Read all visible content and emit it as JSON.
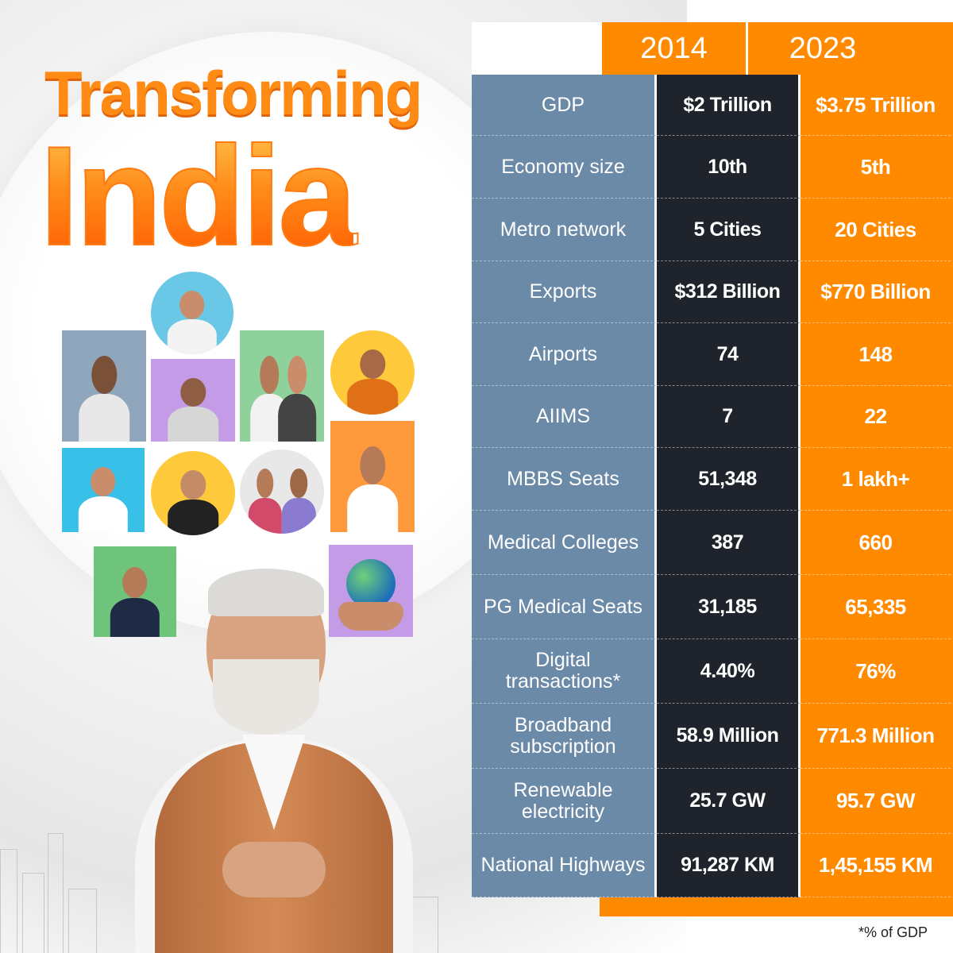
{
  "title": {
    "line1": "Transforming",
    "line2": "India"
  },
  "years": [
    "2014",
    "2023"
  ],
  "rows": [
    {
      "label": "GDP",
      "v2014": "$2 Trillion",
      "v2023": "$3.75 Trillion"
    },
    {
      "label": "Economy size",
      "v2014": "10th",
      "v2023": "5th"
    },
    {
      "label": "Metro network",
      "v2014": "5 Cities",
      "v2023": "20 Cities"
    },
    {
      "label": "Exports",
      "v2014": "$312 Billion",
      "v2023": "$770 Billion"
    },
    {
      "label": "Airports",
      "v2014": "74",
      "v2023": "148"
    },
    {
      "label": "AIIMS",
      "v2014": "7",
      "v2023": "22"
    },
    {
      "label": "MBBS Seats",
      "v2014": "51,348",
      "v2023": "1 lakh+"
    },
    {
      "label": "Medical Colleges",
      "v2014": "387",
      "v2023": "660"
    },
    {
      "label": "PG Medical Seats",
      "v2014": "31,185",
      "v2023": "65,335"
    },
    {
      "label": "Digital transactions*",
      "v2014": "4.40%",
      "v2023": "76%"
    },
    {
      "label": "Broadband subscription",
      "v2014": "58.9 Million",
      "v2023": "771.3 Million"
    },
    {
      "label": "Renewable electricity",
      "v2014": "25.7 GW",
      "v2023": "95.7 GW"
    },
    {
      "label": "National Highways",
      "v2014": "91,287 KM",
      "v2023": "1,45,155 KM"
    }
  ],
  "footnote": "*% of GDP",
  "colors": {
    "accent_orange": "#ff8a00",
    "label_column": "#6b8aa8",
    "dark_column": "#1f232b"
  }
}
